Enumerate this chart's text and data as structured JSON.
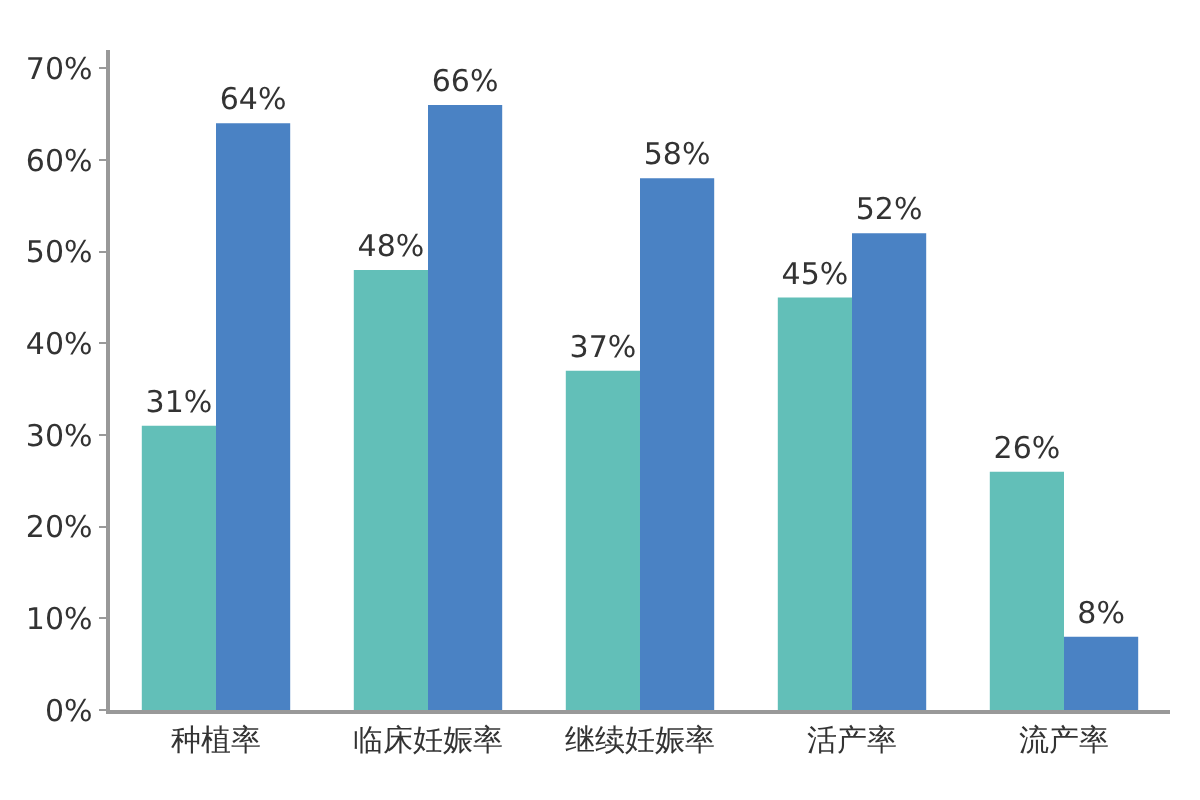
{
  "chart_data": {
    "type": "bar",
    "categories": [
      "种植率",
      "临床妊娠率",
      "继续妊娠率",
      "活产率",
      "流产率"
    ],
    "series": [
      {
        "color": "#62bfb8",
        "values": [
          31,
          48,
          37,
          45,
          26
        ],
        "value_labels": [
          "31%",
          "48%",
          "37%",
          "45%",
          "26%"
        ]
      },
      {
        "color": "#4a82c4",
        "values": [
          64,
          66,
          58,
          52,
          8
        ],
        "value_labels": [
          "64%",
          "66%",
          "58%",
          "52%",
          "8%"
        ]
      }
    ],
    "ylim": [
      0,
      72
    ],
    "yticks": [
      {
        "value": 0,
        "label": "0%"
      },
      {
        "value": 10,
        "label": "10%"
      },
      {
        "value": 20,
        "label": "20%"
      },
      {
        "value": 30,
        "label": "30%"
      },
      {
        "value": 40,
        "label": "40%"
      },
      {
        "value": 50,
        "label": "50%"
      },
      {
        "value": 60,
        "label": "60%"
      },
      {
        "value": 70,
        "label": "70%"
      }
    ],
    "grid": false
  }
}
